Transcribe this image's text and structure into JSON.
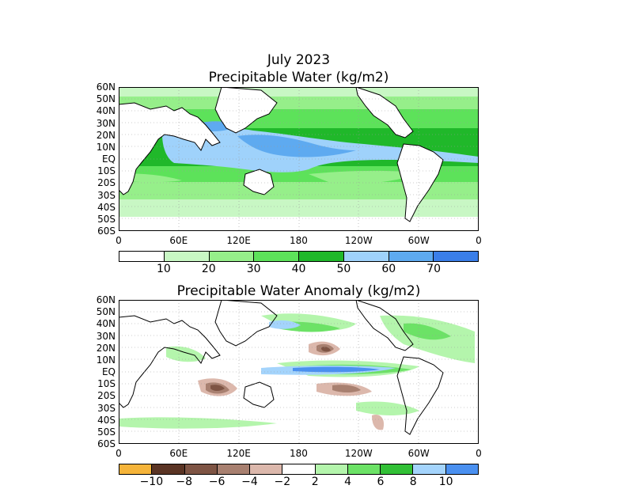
{
  "top": {
    "title_line1": "July 2023",
    "title_line2": "Precipitable Water (kg/m2)",
    "colorbar": {
      "colors": [
        "#ffffff",
        "#c8f7c4",
        "#96ef8a",
        "#5de25a",
        "#20b82a",
        "#9fd2fb",
        "#5eaaf0",
        "#3a7ee8"
      ],
      "labels": [
        "10",
        "20",
        "30",
        "40",
        "50",
        "60",
        "70"
      ]
    }
  },
  "bottom": {
    "title": "Precipitable Water Anomaly (kg/m2)",
    "colorbar": {
      "colors": [
        "#f5b43a",
        "#5a3424",
        "#7e5444",
        "#a88070",
        "#dcb8ac",
        "#ffffff",
        "#b4f5ac",
        "#6ce266",
        "#32c036",
        "#a4d4fc",
        "#4a90f0"
      ],
      "labels": [
        "−10",
        "−8",
        "−6",
        "−4",
        "−2",
        "2",
        "4",
        "6",
        "8",
        "10"
      ]
    }
  },
  "lat_labels": [
    "60N",
    "50N",
    "40N",
    "30N",
    "20N",
    "10N",
    "EQ",
    "10S",
    "20S",
    "30S",
    "40S",
    "50S",
    "60S"
  ],
  "lon_labels": [
    "0",
    "60E",
    "120E",
    "180",
    "120W",
    "60W",
    "0"
  ]
}
